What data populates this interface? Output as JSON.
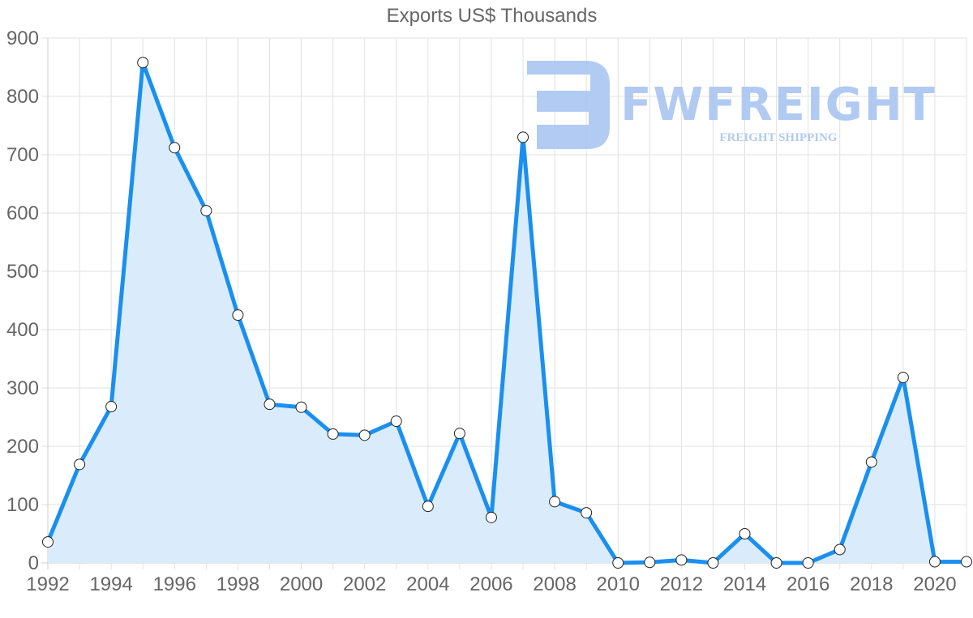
{
  "chart_data": {
    "type": "area",
    "title": "Exports US$ Thousands",
    "xlabel": "",
    "ylabel": "",
    "ylim": [
      0,
      900
    ],
    "yticks": [
      0,
      100,
      200,
      300,
      400,
      500,
      600,
      700,
      800,
      900
    ],
    "xticks": [
      "1992",
      "1994",
      "1996",
      "1998",
      "2000",
      "2002",
      "2004",
      "2006",
      "2008",
      "2010",
      "2012",
      "2014",
      "2016",
      "2018",
      "2020"
    ],
    "grid": true,
    "legend": null,
    "categories": [
      "1992",
      "1993",
      "1994",
      "1995",
      "1996",
      "1997",
      "1998",
      "1999",
      "2000",
      "2001",
      "2002",
      "2003",
      "2004",
      "2005",
      "2006",
      "2007",
      "2008",
      "2009",
      "2010",
      "2011",
      "2012",
      "2013",
      "2014",
      "2015",
      "2016",
      "2017",
      "2018",
      "2019",
      "2020",
      "2021"
    ],
    "series": [
      {
        "name": "Exports",
        "values": [
          36,
          169,
          268,
          858,
          712,
          604,
          425,
          272,
          267,
          221,
          219,
          243,
          97,
          222,
          78,
          730,
          105,
          86,
          0,
          1,
          5,
          0,
          50,
          0,
          0,
          23,
          173,
          318,
          2,
          2
        ]
      }
    ],
    "colors": {
      "line": "#1a8ff0",
      "fill": "#d8ebfc",
      "grid": "#e1e1e1",
      "axis": "#cccccc",
      "text": "#666666",
      "point_fill": "#ffffff",
      "point_stroke": "#222222"
    }
  },
  "watermark": {
    "brand": "FWFREIGHT",
    "tagline": "FREIGHT SHIPPING",
    "color": "#a9c5f1"
  }
}
